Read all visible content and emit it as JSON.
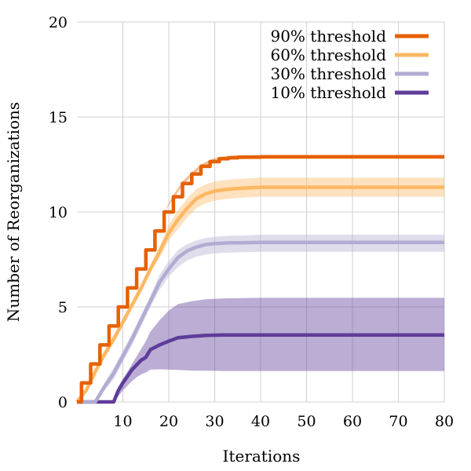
{
  "chart_data": {
    "type": "line",
    "title": "",
    "xlabel": "Iterations",
    "ylabel": "Number of Reorganizations",
    "xlim": [
      0,
      80
    ],
    "ylim": [
      0,
      20
    ],
    "xticks": [
      10,
      20,
      30,
      40,
      50,
      60,
      70,
      80
    ],
    "yticks": [
      0,
      5,
      10,
      15,
      20
    ],
    "grid": true,
    "legend_position": "top-right",
    "series": [
      {
        "name": "90% threshold",
        "color": "#e66101",
        "band_color": "#e66101",
        "step": true,
        "x": [
          0,
          1,
          3,
          5,
          7,
          9,
          11,
          13,
          15,
          17,
          19,
          21,
          23,
          25,
          27,
          29,
          31,
          33,
          35,
          40,
          80
        ],
        "y": [
          0,
          1,
          2,
          3,
          4,
          5,
          6,
          7,
          8,
          9,
          10,
          10.8,
          11.5,
          12.0,
          12.4,
          12.65,
          12.8,
          12.85,
          12.88,
          12.9,
          12.9
        ],
        "lower": [
          0,
          1,
          2,
          3,
          4,
          5,
          6,
          7,
          8,
          9,
          10,
          10.7,
          11.4,
          11.9,
          12.3,
          12.55,
          12.7,
          12.75,
          12.78,
          12.8,
          12.8
        ],
        "upper": [
          0,
          1,
          2,
          3,
          4,
          5,
          6,
          7,
          8,
          9,
          10,
          10.9,
          11.6,
          12.1,
          12.5,
          12.75,
          12.9,
          12.95,
          12.98,
          13.0,
          13.0
        ]
      },
      {
        "name": "60% threshold",
        "color": "#fdb863",
        "band_color": "#fdb863",
        "step": false,
        "x": [
          0,
          2,
          4,
          6,
          8,
          10,
          12,
          14,
          16,
          18,
          20,
          22,
          24,
          26,
          28,
          30,
          33,
          36,
          40,
          80
        ],
        "y": [
          0,
          0.6,
          1.6,
          2.5,
          3.3,
          4.2,
          5.1,
          6.0,
          7.0,
          7.9,
          8.9,
          9.6,
          10.2,
          10.7,
          10.95,
          11.1,
          11.2,
          11.25,
          11.3,
          11.3
        ],
        "lower": [
          0,
          0.5,
          1.5,
          2.3,
          3.1,
          4.0,
          4.9,
          5.8,
          6.8,
          7.6,
          8.5,
          9.1,
          9.7,
          10.2,
          10.45,
          10.6,
          10.7,
          10.75,
          10.8,
          10.8
        ],
        "upper": [
          0,
          0.7,
          1.8,
          2.7,
          3.5,
          4.4,
          5.3,
          6.2,
          7.2,
          8.2,
          9.3,
          10.1,
          10.7,
          11.2,
          11.45,
          11.6,
          11.7,
          11.75,
          11.8,
          11.8
        ]
      },
      {
        "name": "30% threshold",
        "color": "#b2abd2",
        "band_color": "#b2abd2",
        "step": false,
        "x": [
          0,
          4,
          6,
          8,
          10,
          12,
          14,
          16,
          18,
          20,
          22,
          24,
          26,
          28,
          30,
          33,
          36,
          40,
          80
        ],
        "y": [
          0,
          0,
          0.8,
          1.5,
          2.4,
          3.3,
          4.3,
          5.3,
          6.3,
          7.0,
          7.6,
          7.95,
          8.15,
          8.28,
          8.33,
          8.37,
          8.38,
          8.4,
          8.4
        ],
        "lower": [
          0,
          0,
          0.6,
          1.2,
          2.1,
          3.0,
          4.0,
          5.0,
          5.9,
          6.6,
          7.1,
          7.45,
          7.65,
          7.75,
          7.82,
          7.86,
          7.88,
          7.9,
          7.9
        ],
        "upper": [
          0,
          0,
          1.0,
          1.8,
          2.7,
          3.6,
          4.6,
          5.6,
          6.7,
          7.4,
          8.0,
          8.3,
          8.5,
          8.62,
          8.7,
          8.74,
          8.76,
          8.8,
          8.8
        ]
      },
      {
        "name": "10% threshold",
        "color": "#5e3c99",
        "band_color": "#5e3c99",
        "step": false,
        "x": [
          0,
          8,
          9,
          10,
          11,
          12,
          13,
          14,
          15,
          16,
          18,
          20,
          22,
          25,
          28,
          32,
          40,
          80
        ],
        "y": [
          0,
          0,
          0.6,
          1.0,
          1.35,
          1.7,
          1.95,
          2.2,
          2.35,
          2.75,
          3.0,
          3.2,
          3.38,
          3.45,
          3.5,
          3.52,
          3.52,
          3.52
        ],
        "lower": [
          0,
          0,
          0.3,
          0.6,
          0.85,
          1.1,
          1.3,
          1.45,
          1.55,
          1.7,
          1.72,
          1.7,
          1.68,
          1.65,
          1.64,
          1.63,
          1.63,
          1.63
        ],
        "upper": [
          0,
          0,
          0.8,
          1.2,
          1.6,
          2.0,
          2.4,
          2.8,
          3.2,
          3.7,
          4.3,
          4.8,
          5.15,
          5.3,
          5.4,
          5.45,
          5.48,
          5.48
        ]
      }
    ]
  }
}
